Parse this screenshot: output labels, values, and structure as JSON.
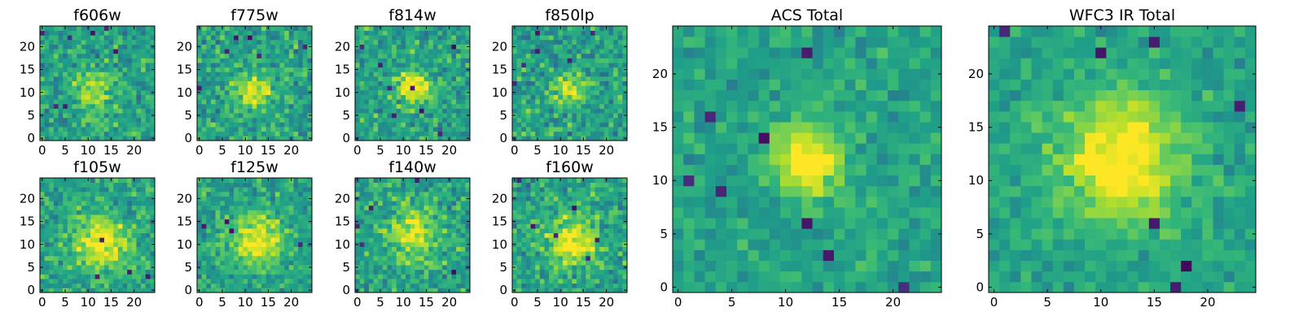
{
  "figure": {
    "description_free": true,
    "colormap": "viridis",
    "colors": {
      "axes": "#000000",
      "background": "#ffffff"
    }
  },
  "chart_data": [
    {
      "type": "heatmap",
      "id": "f606w",
      "title": "f606w",
      "grid_size": 25,
      "xlim": [
        -0.5,
        24.5
      ],
      "ylim": [
        -0.5,
        24.5
      ],
      "xticks": [
        0,
        5,
        10,
        15,
        20
      ],
      "yticks": [
        0,
        5,
        10,
        15,
        20
      ],
      "center": [
        11,
        10
      ],
      "amplitude": 0.3,
      "sigma": 3,
      "noise": 0.2,
      "seed": 606,
      "dark_pixels": 7
    },
    {
      "type": "heatmap",
      "id": "f775w",
      "title": "f775w",
      "grid_size": 25,
      "xlim": [
        -0.5,
        24.5
      ],
      "ylim": [
        -0.5,
        24.5
      ],
      "xticks": [
        0,
        5,
        10,
        15,
        20
      ],
      "yticks": [
        0,
        5,
        10,
        15,
        20
      ],
      "center": [
        12,
        10
      ],
      "amplitude": 0.45,
      "sigma": 2.5,
      "noise": 0.2,
      "seed": 775,
      "dark_pixels": 6
    },
    {
      "type": "heatmap",
      "id": "f814w",
      "title": "f814w",
      "grid_size": 25,
      "xlim": [
        -0.5,
        24.5
      ],
      "ylim": [
        -0.5,
        24.5
      ],
      "xticks": [
        0,
        5,
        10,
        15,
        20
      ],
      "yticks": [
        0,
        5,
        10,
        15,
        20
      ],
      "center": [
        12,
        11
      ],
      "amplitude": 0.45,
      "sigma": 2.5,
      "noise": 0.2,
      "seed": 814,
      "dark_pixels": 8
    },
    {
      "type": "heatmap",
      "id": "f850lp",
      "title": "f850lp",
      "grid_size": 25,
      "xlim": [
        -0.5,
        24.5
      ],
      "ylim": [
        -0.5,
        24.5
      ],
      "xticks": [
        0,
        5,
        10,
        15,
        20
      ],
      "yticks": [
        0,
        5,
        10,
        15,
        20
      ],
      "center": [
        12,
        11
      ],
      "amplitude": 0.35,
      "sigma": 2.5,
      "noise": 0.2,
      "seed": 850,
      "dark_pixels": 6
    },
    {
      "type": "heatmap",
      "id": "f105w",
      "title": "f105w",
      "grid_size": 25,
      "xlim": [
        -0.5,
        24.5
      ],
      "ylim": [
        -0.5,
        24.5
      ],
      "xticks": [
        0,
        5,
        10,
        15,
        20
      ],
      "yticks": [
        0,
        5,
        10,
        15,
        20
      ],
      "center": [
        13,
        10
      ],
      "amplitude": 0.45,
      "sigma": 4,
      "noise": 0.18,
      "seed": 105,
      "dark_pixels": 4
    },
    {
      "type": "heatmap",
      "id": "f125w",
      "title": "f125w",
      "grid_size": 25,
      "xlim": [
        -0.5,
        24.5
      ],
      "ylim": [
        -0.5,
        24.5
      ],
      "xticks": [
        0,
        5,
        10,
        15,
        20
      ],
      "yticks": [
        0,
        5,
        10,
        15,
        20
      ],
      "center": [
        12,
        11
      ],
      "amplitude": 0.4,
      "sigma": 4,
      "noise": 0.18,
      "seed": 125,
      "dark_pixels": 4
    },
    {
      "type": "heatmap",
      "id": "f140w",
      "title": "f140w",
      "grid_size": 25,
      "xlim": [
        -0.5,
        24.5
      ],
      "ylim": [
        -0.5,
        24.5
      ],
      "xticks": [
        0,
        5,
        10,
        15,
        20
      ],
      "yticks": [
        0,
        5,
        10,
        15,
        20
      ],
      "center": [
        12,
        12
      ],
      "amplitude": 0.35,
      "sigma": 4,
      "noise": 0.2,
      "seed": 140,
      "dark_pixels": 5
    },
    {
      "type": "heatmap",
      "id": "f160w",
      "title": "f160w",
      "grid_size": 25,
      "xlim": [
        -0.5,
        24.5
      ],
      "ylim": [
        -0.5,
        24.5
      ],
      "xticks": [
        0,
        5,
        10,
        15,
        20
      ],
      "yticks": [
        0,
        5,
        10,
        15,
        20
      ],
      "center": [
        13,
        11
      ],
      "amplitude": 0.4,
      "sigma": 4,
      "noise": 0.2,
      "seed": 160,
      "dark_pixels": 6
    },
    {
      "type": "heatmap",
      "id": "acs_total",
      "title": "ACS Total",
      "grid_size": 25,
      "xlim": [
        -0.5,
        24.5
      ],
      "ylim": [
        -0.5,
        24.5
      ],
      "xticks": [
        0,
        5,
        10,
        15,
        20
      ],
      "yticks": [
        0,
        5,
        10,
        15,
        20
      ],
      "center": [
        12,
        12
      ],
      "amplitude": 0.5,
      "sigma": 2.2,
      "noise": 0.13,
      "seed": 901,
      "dark_pixels": 8
    },
    {
      "type": "heatmap",
      "id": "wfc3_ir_total",
      "title": "WFC3 IR Total",
      "grid_size": 25,
      "xlim": [
        -0.5,
        24.5
      ],
      "ylim": [
        -0.5,
        24.5
      ],
      "xticks": [
        0,
        5,
        10,
        15,
        20
      ],
      "yticks": [
        0,
        5,
        10,
        15,
        20
      ],
      "center": [
        12,
        12
      ],
      "amplitude": 0.5,
      "sigma": 4,
      "noise": 0.12,
      "seed": 902,
      "dark_pixels": 7
    }
  ]
}
